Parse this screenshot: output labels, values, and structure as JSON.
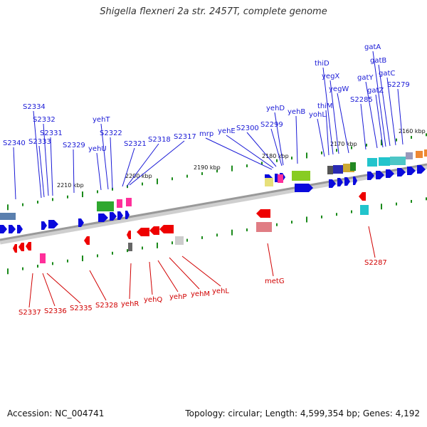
{
  "title": "Shigella flexneri 2a str. 2457T, complete genome",
  "footer": {
    "accession": "Accession: NC_004741",
    "topology": "Topology: circular; Length: 4,599,354 bp; Genes: 4,192"
  },
  "colors": {
    "forward": "#0a0adc",
    "reverse": "#ee0000",
    "forward_label": "#1a1ad6",
    "reverse_label": "#d10000",
    "tick": "#1a8a1a",
    "backbone": "#999999"
  },
  "scale_labels": [
    "2210 kbp",
    "2200 kbp",
    "2190 kbp",
    "2180 kbp",
    "2170 kbp",
    "2160 kbp"
  ],
  "top_genes": [
    "S2340",
    "S2334",
    "S2333",
    "S2332",
    "S2331",
    "S2329",
    "yehU",
    "yehT",
    "S2322",
    "S2321",
    "S2318",
    "S2317",
    "mrp",
    "yehE",
    "S2300",
    "S2299",
    "yehD",
    "yehB",
    "yohL",
    "thiM",
    "thiD",
    "yegX",
    "yegW",
    "S2285",
    "gatY",
    "gatZ",
    "gatA",
    "gatB",
    "gatC",
    "S2279"
  ],
  "bottom_genes": [
    "S2337",
    "S2336",
    "S2335",
    "S2328",
    "yehR",
    "yehQ",
    "yehP",
    "yehM",
    "yehL",
    "metG",
    "S2287"
  ]
}
